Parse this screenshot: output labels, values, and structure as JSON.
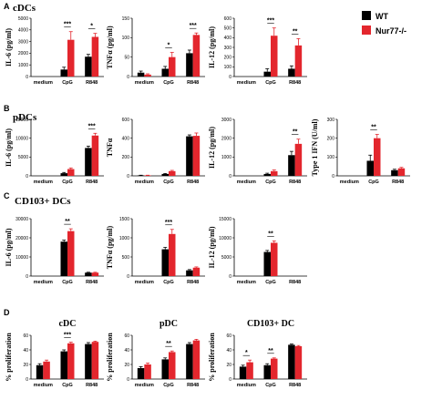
{
  "colors": {
    "wt": "#000000",
    "ko": "#e3262d",
    "axis": "#000000"
  },
  "legend": {
    "wt_label": "WT",
    "ko_label": "Nur77-/-"
  },
  "panels": [
    {
      "letter": "A",
      "title": "cDCs"
    },
    {
      "letter": "B",
      "title": "pDCs"
    },
    {
      "letter": "C",
      "title": "CD103+ DCs"
    },
    {
      "letter": "D",
      "title": ""
    }
  ],
  "chart_data": [
    {
      "type": "bar",
      "row": 0,
      "col": 0,
      "ylabel": "IL-6 (pg/ml)",
      "categories": [
        "medium",
        "CpG",
        "R848"
      ],
      "ylim": [
        0,
        5000
      ],
      "yticks": [
        0,
        1000,
        2000,
        3000,
        4000,
        5000
      ],
      "series": [
        {
          "name": "WT",
          "values": [
            0,
            600,
            1700
          ],
          "errors": [
            0,
            200,
            200
          ]
        },
        {
          "name": "Nur77-/-",
          "values": [
            0,
            3150,
            3400
          ],
          "errors": [
            0,
            700,
            300
          ]
        }
      ],
      "sig": [
        {
          "category": 1,
          "label": "***"
        },
        {
          "category": 2,
          "label": "*"
        }
      ]
    },
    {
      "type": "bar",
      "row": 0,
      "col": 1,
      "ylabel": "TNFα (pg/ml)",
      "categories": [
        "medium",
        "CpG",
        "R848"
      ],
      "ylim": [
        0,
        150
      ],
      "yticks": [
        0,
        50,
        100,
        150
      ],
      "series": [
        {
          "name": "WT",
          "values": [
            10,
            20,
            60
          ],
          "errors": [
            4,
            6,
            8
          ]
        },
        {
          "name": "Nur77-/-",
          "values": [
            5,
            50,
            107
          ],
          "errors": [
            2,
            12,
            5
          ]
        }
      ],
      "sig": [
        {
          "category": 1,
          "label": "*"
        },
        {
          "category": 2,
          "label": "***"
        }
      ]
    },
    {
      "type": "bar",
      "row": 0,
      "col": 2,
      "ylabel": "IL-12 (pg/ml)",
      "categories": [
        "medium",
        "CpG",
        "R848"
      ],
      "ylim": [
        0,
        600
      ],
      "yticks": [
        0,
        100,
        200,
        300,
        400,
        500,
        600
      ],
      "series": [
        {
          "name": "WT",
          "values": [
            0,
            50,
            80
          ],
          "errors": [
            0,
            30,
            30
          ]
        },
        {
          "name": "Nur77-/-",
          "values": [
            0,
            420,
            320
          ],
          "errors": [
            0,
            80,
            70
          ]
        }
      ],
      "sig": [
        {
          "category": 1,
          "label": "***"
        },
        {
          "category": 2,
          "label": "**"
        }
      ]
    },
    {
      "type": "bar",
      "row": 1,
      "col": 0,
      "ylabel": "IL-6 (pg/ml)",
      "categories": [
        "medium",
        "CpG",
        "R848"
      ],
      "ylim": [
        0,
        15000
      ],
      "yticks": [
        0,
        5000,
        10000,
        15000
      ],
      "series": [
        {
          "name": "WT",
          "values": [
            0,
            700,
            7400
          ],
          "errors": [
            0,
            200,
            500
          ]
        },
        {
          "name": "Nur77-/-",
          "values": [
            0,
            1800,
            10700
          ],
          "errors": [
            0,
            300,
            600
          ]
        }
      ],
      "sig": [
        {
          "category": 2,
          "label": "***"
        }
      ]
    },
    {
      "type": "bar",
      "row": 1,
      "col": 1,
      "ylabel": "TNFα",
      "categories": [
        "medium",
        "CpG",
        "R848"
      ],
      "ylim": [
        0,
        600
      ],
      "yticks": [
        0,
        200,
        400,
        600
      ],
      "series": [
        {
          "name": "WT",
          "values": [
            5,
            20,
            420
          ],
          "errors": [
            2,
            5,
            15
          ]
        },
        {
          "name": "Nur77-/-",
          "values": [
            5,
            50,
            425
          ],
          "errors": [
            2,
            8,
            30
          ]
        }
      ],
      "sig": []
    },
    {
      "type": "bar",
      "row": 1,
      "col": 2,
      "ylabel": "IL-12 (pg/ml)",
      "categories": [
        "medium",
        "CpG",
        "R848"
      ],
      "ylim": [
        0,
        3000
      ],
      "yticks": [
        0,
        1000,
        2000,
        3000
      ],
      "series": [
        {
          "name": "WT",
          "values": [
            0,
            100,
            1100
          ],
          "errors": [
            0,
            40,
            200
          ]
        },
        {
          "name": "Nur77-/-",
          "values": [
            0,
            250,
            1700
          ],
          "errors": [
            0,
            60,
            250
          ]
        }
      ],
      "sig": [
        {
          "category": 2,
          "label": "**"
        }
      ]
    },
    {
      "type": "bar",
      "row": 1,
      "col": 3,
      "ylabel": "Type 1 IFN (U/ml)",
      "categories": [
        "medium",
        "CpG",
        "R848"
      ],
      "ylim": [
        0,
        300
      ],
      "yticks": [
        0,
        100,
        200,
        300
      ],
      "series": [
        {
          "name": "WT",
          "values": [
            0,
            80,
            30
          ],
          "errors": [
            0,
            30,
            5
          ]
        },
        {
          "name": "Nur77-/-",
          "values": [
            0,
            200,
            40
          ],
          "errors": [
            0,
            20,
            5
          ]
        }
      ],
      "sig": [
        {
          "category": 1,
          "label": "**"
        }
      ]
    },
    {
      "type": "bar",
      "row": 2,
      "col": 0,
      "ylabel": "IL-6 (pg/ml)",
      "categories": [
        "medium",
        "CpG",
        "R848"
      ],
      "ylim": [
        0,
        30000
      ],
      "yticks": [
        0,
        10000,
        20000,
        30000
      ],
      "series": [
        {
          "name": "WT",
          "values": [
            0,
            18000,
            1800
          ],
          "errors": [
            0,
            800,
            200
          ]
        },
        {
          "name": "Nur77-/-",
          "values": [
            0,
            23500,
            1800
          ],
          "errors": [
            0,
            1200,
            200
          ]
        }
      ],
      "sig": [
        {
          "category": 1,
          "label": "**"
        }
      ]
    },
    {
      "type": "bar",
      "row": 2,
      "col": 1,
      "ylabel": "TNFα (pg/ml)",
      "categories": [
        "medium",
        "CpG",
        "R848"
      ],
      "ylim": [
        0,
        1500
      ],
      "yticks": [
        0,
        500,
        1000,
        1500
      ],
      "series": [
        {
          "name": "WT",
          "values": [
            0,
            700,
            150
          ],
          "errors": [
            0,
            50,
            20
          ]
        },
        {
          "name": "Nur77-/-",
          "values": [
            0,
            1100,
            220
          ],
          "errors": [
            0,
            120,
            20
          ]
        }
      ],
      "sig": [
        {
          "category": 1,
          "label": "***"
        }
      ]
    },
    {
      "type": "bar",
      "row": 2,
      "col": 2,
      "ylabel": "IL-12 (pg/ml)",
      "categories": [
        "medium",
        "CpG",
        "R848"
      ],
      "ylim": [
        0,
        15000
      ],
      "yticks": [
        0,
        5000,
        10000,
        15000
      ],
      "series": [
        {
          "name": "WT",
          "values": [
            0,
            6300,
            0
          ],
          "errors": [
            0,
            400,
            0
          ]
        },
        {
          "name": "Nur77-/-",
          "values": [
            0,
            8700,
            0
          ],
          "errors": [
            0,
            500,
            0
          ]
        }
      ],
      "sig": [
        {
          "category": 1,
          "label": "**"
        }
      ]
    },
    {
      "type": "bar",
      "row": 3,
      "col": 0,
      "title": "cDC",
      "ylabel": "% proliferation",
      "categories": [
        "medium",
        "CpG",
        "R848"
      ],
      "ylim": [
        0,
        60
      ],
      "yticks": [
        0,
        20,
        40,
        60
      ],
      "series": [
        {
          "name": "WT",
          "values": [
            19,
            38,
            48
          ],
          "errors": [
            2,
            2,
            2
          ]
        },
        {
          "name": "Nur77-/-",
          "values": [
            24,
            49,
            51
          ],
          "errors": [
            2,
            1.5,
            1
          ]
        }
      ],
      "sig": [
        {
          "category": 1,
          "label": "***"
        }
      ]
    },
    {
      "type": "bar",
      "row": 3,
      "col": 1,
      "title": "pDC",
      "ylabel": "% proliferation",
      "categories": [
        "medium",
        "CpG",
        "R848"
      ],
      "ylim": [
        0,
        60
      ],
      "yticks": [
        0,
        20,
        40,
        60
      ],
      "series": [
        {
          "name": "WT",
          "values": [
            15,
            27,
            48
          ],
          "errors": [
            2,
            2,
            2
          ]
        },
        {
          "name": "Nur77-/-",
          "values": [
            20,
            37,
            53
          ],
          "errors": [
            2,
            1.5,
            1.5
          ]
        }
      ],
      "sig": [
        {
          "category": 1,
          "label": "**"
        }
      ]
    },
    {
      "type": "bar",
      "row": 3,
      "col": 2,
      "title": "CD103+ DC",
      "ylabel": "% proliferation",
      "categories": [
        "medium",
        "CpG",
        "R848"
      ],
      "ylim": [
        0,
        60
      ],
      "yticks": [
        0,
        20,
        40,
        60
      ],
      "series": [
        {
          "name": "WT",
          "values": [
            17,
            19,
            47
          ],
          "errors": [
            2,
            2,
            1
          ]
        },
        {
          "name": "Nur77-/-",
          "values": [
            23,
            28,
            45
          ],
          "errors": [
            3,
            1,
            1
          ]
        }
      ],
      "sig": [
        {
          "category": 0,
          "label": "*"
        },
        {
          "category": 1,
          "label": "**"
        }
      ]
    }
  ]
}
